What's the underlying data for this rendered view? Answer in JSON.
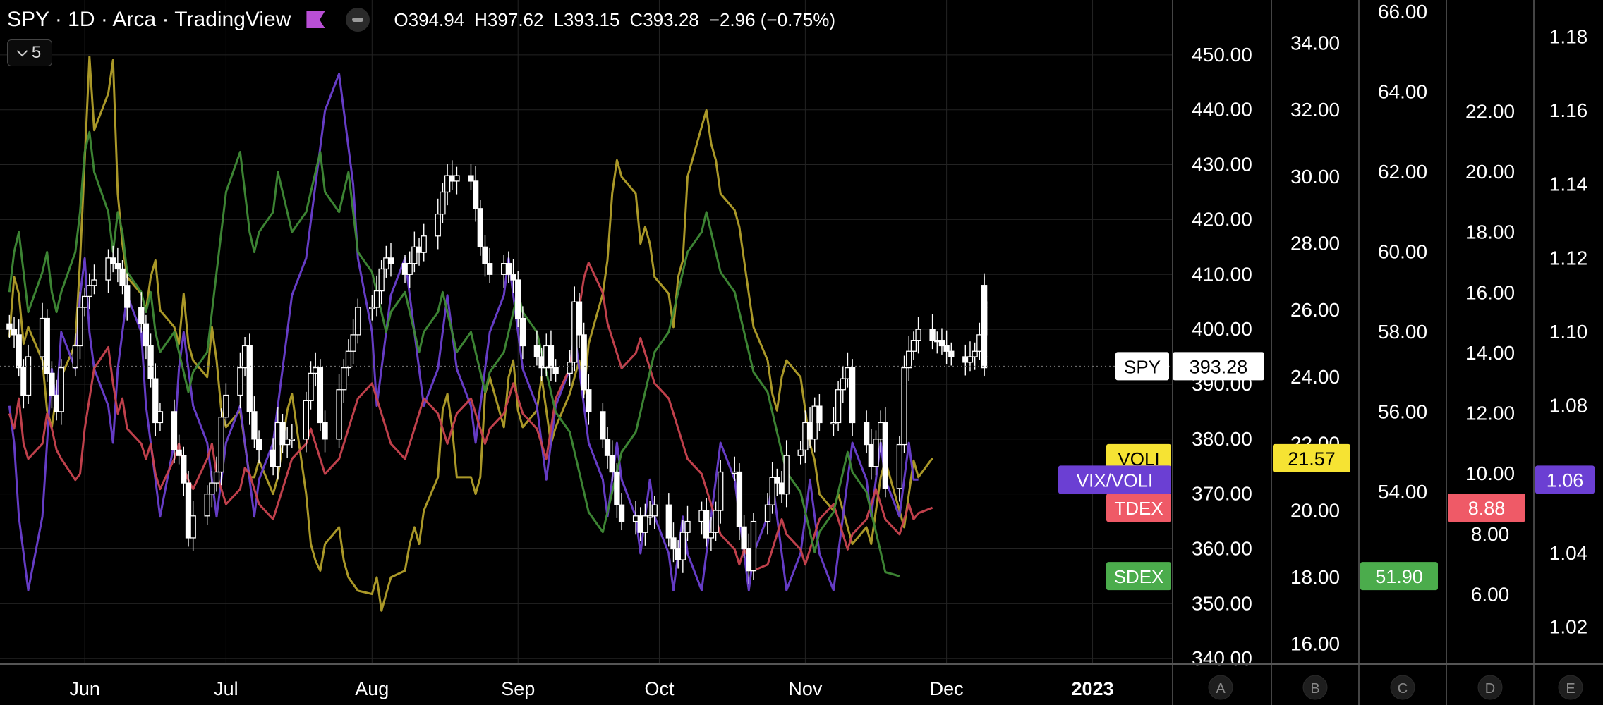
{
  "header": {
    "symbol_line": "SPY · 1D · Arca · TradingView",
    "open": "O394.94",
    "high": "H397.62",
    "low": "L393.15",
    "close": "C393.28",
    "change": "−2.96 (−0.75%)",
    "indicator_count": "5"
  },
  "colors": {
    "background": "#000000",
    "grid": "#232323",
    "spy": "#ffffff",
    "VOLI": "#b3a02a",
    "VIX/VOLI": "#6a3fd0",
    "TDEX": "#c9434f",
    "SDEX": "#3f8a36",
    "VOLI_label": "#f6e333",
    "VIX/VOLI_label": "#6b3fd3",
    "TDEX_label": "#ef5a67",
    "SDEX_label": "#4bac4c"
  },
  "chart_data": {
    "type": "line",
    "x_axis": {
      "tick_labels": [
        "Jun",
        "Jul",
        "Aug",
        "Sep",
        "Oct",
        "Nov",
        "Dec",
        "2023"
      ],
      "range": [
        "2022-05-14",
        "2023-01-18"
      ]
    },
    "scales": [
      {
        "id": "SPY",
        "ticks": [
          "340.00",
          "350.00",
          "360.00",
          "370.00",
          "380.00",
          "390.00",
          "400.00",
          "410.00",
          "420.00",
          "430.00",
          "440.00",
          "450.00"
        ],
        "range": [
          339,
          460
        ],
        "button": ""
      },
      {
        "id": "A",
        "ticks": [
          "16.00",
          "18.00",
          "20.00",
          "22.00",
          "24.00",
          "26.00",
          "28.00",
          "30.00",
          "32.00",
          "34.00"
        ],
        "range": [
          15.4,
          35.3
        ],
        "button": "A"
      },
      {
        "id": "B",
        "ticks": [
          "54.00",
          "56.00",
          "58.00",
          "60.00",
          "62.00",
          "64.00",
          "66.00"
        ],
        "range": [
          49.7,
          66.3
        ],
        "button": "B"
      },
      {
        "id": "C",
        "ticks": [
          "6.00",
          "8.00",
          "10.00",
          "12.00",
          "14.00",
          "16.00",
          "18.00",
          "20.00",
          "22.00"
        ],
        "range": [
          3.7,
          25.7
        ],
        "button": "C"
      },
      {
        "id": "D",
        "ticks": [
          "1.02",
          "1.04",
          "1.06",
          "1.08",
          "1.10",
          "1.12",
          "1.14",
          "1.16",
          "1.18"
        ],
        "range": [
          1.01,
          1.19
        ],
        "button": "D"
      }
    ],
    "extra_button": "E",
    "price_labels": [
      {
        "name": "SPY",
        "value": "393.28",
        "scale": "SPY"
      },
      {
        "name": "VOLI",
        "value": "21.57",
        "scale": "A"
      },
      {
        "name": "VIX/VOLI",
        "value": "1.06",
        "scale": "D"
      },
      {
        "name": "TDEX",
        "value": "8.88",
        "scale": "C"
      },
      {
        "name": "SDEX",
        "value": "51.90",
        "scale": "B"
      }
    ],
    "spy_close": [
      400,
      399,
      393,
      388,
      395,
      402,
      392,
      388,
      385,
      393,
      397,
      404,
      406,
      408,
      409,
      413,
      412,
      411,
      408,
      404,
      401,
      397,
      391,
      383,
      385,
      378,
      377,
      372,
      362,
      366,
      370,
      372,
      374,
      384,
      388,
      393,
      397,
      385,
      380,
      378,
      375,
      383,
      379,
      380,
      380,
      387,
      392,
      393,
      383,
      380,
      389,
      393,
      396,
      399,
      404,
      404,
      407,
      411,
      413,
      412,
      410,
      412,
      415,
      414,
      417,
      421,
      425,
      428,
      427,
      428,
      427,
      422,
      415,
      412,
      410,
      412,
      410,
      409,
      402,
      397,
      395,
      393,
      397,
      393,
      392,
      394,
      405,
      399,
      389,
      385,
      380,
      377,
      374,
      368,
      365,
      366,
      363,
      366,
      366,
      368,
      362,
      360,
      358,
      363,
      365,
      367,
      362,
      363,
      367,
      374,
      374,
      364,
      360,
      356,
      365,
      368,
      373,
      372,
      370,
      377,
      378,
      383,
      380,
      386,
      383,
      383,
      389,
      391,
      393,
      383,
      379,
      375,
      380,
      383,
      371,
      379,
      393,
      396,
      398,
      400,
      398,
      398,
      397,
      396,
      395,
      394,
      395,
      396,
      399,
      400,
      401,
      404,
      405,
      405,
      399,
      405,
      408,
      404,
      395,
      394,
      393
    ],
    "series": [
      {
        "name": "VOLI",
        "scale": "A",
        "values": [
          25.2,
          27.0,
          26.5,
          25.0,
          25.5,
          24.5,
          23.0,
          22.5,
          23.5,
          24.0,
          25.0,
          27.5,
          30.5,
          33.6,
          31.4,
          32.5,
          33.5,
          29.5,
          28.0,
          27.0,
          26.5,
          26.0,
          27.0,
          27.5,
          26.0,
          25.5,
          25.0,
          26.5,
          25.0,
          24.5,
          24.0,
          25.5,
          24.5,
          23.0,
          22.5,
          23.0,
          22.0,
          21.0,
          21.0,
          21.5,
          20.5,
          21.0,
          22.0,
          23.0,
          23.5,
          20.5,
          19.0,
          18.5,
          18.2,
          19.0,
          19.5,
          18.5,
          18.0,
          17.8,
          17.6,
          17.5,
          18.0,
          17.0,
          17.5,
          18.0,
          18.2,
          19.0,
          19.5,
          19.0,
          20.0,
          21.0,
          23.0,
          23.5,
          22.5,
          21.0,
          21.0,
          20.5,
          21.0,
          23.5,
          24.0,
          22.5,
          24.0,
          24.5,
          23.0,
          22.5,
          23.0,
          24.0,
          23.0,
          22.0,
          22.5,
          23.5,
          24.0,
          24.5,
          23.5,
          25.0,
          26.5,
          27.5,
          29.5,
          30.5,
          30.0,
          29.5,
          28.0,
          28.5,
          28.0,
          27.0,
          26.5,
          25.5,
          27.0,
          27.5,
          30.0,
          31.5,
          32.0,
          31.0,
          30.5,
          29.5,
          29.0,
          28.5,
          27.5,
          26.5,
          25.5,
          24.5,
          23.5,
          23.0,
          24.0,
          24.5,
          24.0,
          23.0,
          22.0,
          21.5,
          20.5,
          20.0,
          20.5,
          20.0,
          19.5,
          19.0,
          19.5,
          19.0,
          20.0,
          21.0,
          21.5,
          20.0,
          19.5,
          20.5,
          21.5,
          21.0,
          21.57
        ]
      },
      {
        "name": "VIX/VOLI",
        "scale": "D",
        "values": [
          1.08,
          1.07,
          1.05,
          1.04,
          1.03,
          1.05,
          1.07,
          1.09,
          1.08,
          1.1,
          1.09,
          1.11,
          1.12,
          1.1,
          1.09,
          1.08,
          1.07,
          1.09,
          1.1,
          1.11,
          1.1,
          1.08,
          1.07,
          1.06,
          1.05,
          1.07,
          1.09,
          1.1,
          1.09,
          1.08,
          1.07,
          1.06,
          1.05,
          1.06,
          1.07,
          1.08,
          1.07,
          1.06,
          1.05,
          1.06,
          1.07,
          1.08,
          1.09,
          1.1,
          1.11,
          1.12,
          1.13,
          1.14,
          1.15,
          1.16,
          1.17,
          1.16,
          1.15,
          1.14,
          1.12,
          1.1,
          1.08,
          1.09,
          1.1,
          1.11,
          1.12,
          1.11,
          1.1,
          1.09,
          1.08,
          1.09,
          1.1,
          1.11,
          1.1,
          1.09,
          1.08,
          1.07,
          1.08,
          1.09,
          1.1,
          1.11,
          1.12,
          1.11,
          1.1,
          1.09,
          1.08,
          1.07,
          1.06,
          1.07,
          1.08,
          1.09,
          1.1,
          1.09,
          1.08,
          1.07,
          1.06,
          1.05,
          1.06,
          1.07,
          1.06,
          1.05,
          1.04,
          1.05,
          1.06,
          1.05,
          1.04,
          1.03,
          1.04,
          1.05,
          1.04,
          1.03,
          1.04,
          1.05,
          1.06,
          1.07,
          1.06,
          1.05,
          1.04,
          1.03,
          1.04,
          1.05,
          1.06,
          1.05,
          1.04,
          1.03,
          1.04,
          1.05,
          1.06,
          1.05,
          1.04,
          1.03,
          1.04,
          1.05,
          1.06,
          1.07,
          1.06,
          1.05,
          1.06,
          1.07,
          1.06,
          1.05,
          1.06,
          1.07,
          1.06,
          1.06
        ]
      },
      {
        "name": "TDEX",
        "scale": "C",
        "values": [
          12.0,
          11.5,
          12.5,
          11.0,
          10.5,
          11.0,
          12.0,
          11.5,
          10.8,
          10.5,
          9.8,
          10.0,
          11.5,
          12.5,
          13.5,
          14.2,
          13.0,
          12.0,
          12.5,
          11.5,
          11.0,
          10.5,
          11.0,
          10.0,
          9.5,
          10.5,
          11.0,
          10.2,
          9.8,
          9.5,
          10.5,
          11.0,
          10.0,
          9.5,
          9.0,
          9.5,
          10.2,
          10.0,
          9.5,
          9.0,
          8.5,
          9.0,
          9.5,
          10.0,
          10.5,
          11.0,
          11.5,
          11.0,
          10.5,
          10.0,
          10.5,
          11.0,
          11.5,
          12.0,
          12.5,
          13.0,
          12.5,
          12.0,
          11.5,
          11.0,
          10.5,
          11.0,
          11.5,
          12.0,
          12.5,
          12.0,
          11.5,
          11.0,
          11.5,
          12.0,
          12.5,
          12.0,
          11.5,
          11.0,
          11.5,
          12.0,
          12.5,
          13.0,
          12.5,
          12.0,
          11.5,
          11.0,
          10.5,
          11.5,
          12.5,
          13.5,
          14.5,
          15.5,
          16.5,
          17.0,
          16.0,
          15.0,
          14.5,
          14.0,
          13.5,
          14.0,
          14.5,
          14.0,
          13.5,
          13.0,
          12.5,
          12.0,
          11.5,
          11.0,
          10.5,
          10.0,
          9.5,
          9.0,
          8.5,
          8.0,
          7.5,
          7.0,
          7.5,
          7.2,
          6.8,
          7.0,
          7.5,
          8.0,
          8.5,
          8.0,
          7.5,
          7.0,
          7.5,
          8.0,
          8.5,
          9.0,
          8.5,
          8.0,
          7.5,
          8.0,
          8.5,
          9.0,
          9.5,
          9.0,
          8.5,
          8.0,
          8.5,
          9.0,
          8.5,
          8.7,
          8.88
        ]
      },
      {
        "name": "SDEX",
        "scale": "B",
        "values": [
          59.0,
          60.0,
          60.5,
          59.5,
          58.5,
          59.5,
          60.0,
          59.0,
          58.5,
          59.0,
          60.0,
          61.0,
          62.5,
          63.0,
          62.0,
          61.0,
          60.0,
          61.0,
          60.5,
          59.5,
          59.0,
          58.5,
          59.0,
          58.0,
          57.5,
          58.0,
          57.5,
          57.0,
          56.5,
          57.0,
          57.5,
          58.5,
          59.5,
          60.5,
          61.5,
          62.5,
          61.5,
          60.5,
          60.0,
          60.5,
          61.0,
          62.0,
          61.5,
          61.0,
          60.5,
          61.0,
          61.5,
          62.0,
          62.5,
          61.5,
          61.0,
          61.5,
          62.0,
          61.0,
          60.0,
          59.5,
          59.0,
          58.5,
          58.0,
          58.5,
          59.0,
          58.5,
          58.0,
          57.5,
          58.0,
          58.5,
          59.0,
          58.5,
          58.0,
          57.5,
          58.0,
          57.5,
          57.0,
          56.5,
          57.0,
          57.5,
          58.0,
          58.5,
          59.0,
          58.5,
          58.0,
          57.5,
          57.0,
          56.5,
          56.0,
          55.5,
          55.0,
          54.5,
          54.0,
          53.5,
          53.0,
          53.5,
          54.0,
          54.5,
          55.0,
          55.5,
          56.0,
          56.5,
          57.0,
          57.5,
          58.0,
          58.5,
          59.0,
          59.5,
          60.0,
          60.5,
          61.0,
          60.5,
          60.0,
          59.5,
          59.0,
          58.5,
          58.0,
          57.5,
          57.0,
          56.5,
          56.0,
          55.5,
          55.0,
          54.5,
          54.0,
          53.5,
          53.0,
          52.5,
          53.0,
          53.5,
          54.0,
          54.5,
          55.0,
          54.5,
          54.0,
          53.5,
          53.0,
          52.5,
          52.0,
          51.9
        ]
      }
    ]
  }
}
